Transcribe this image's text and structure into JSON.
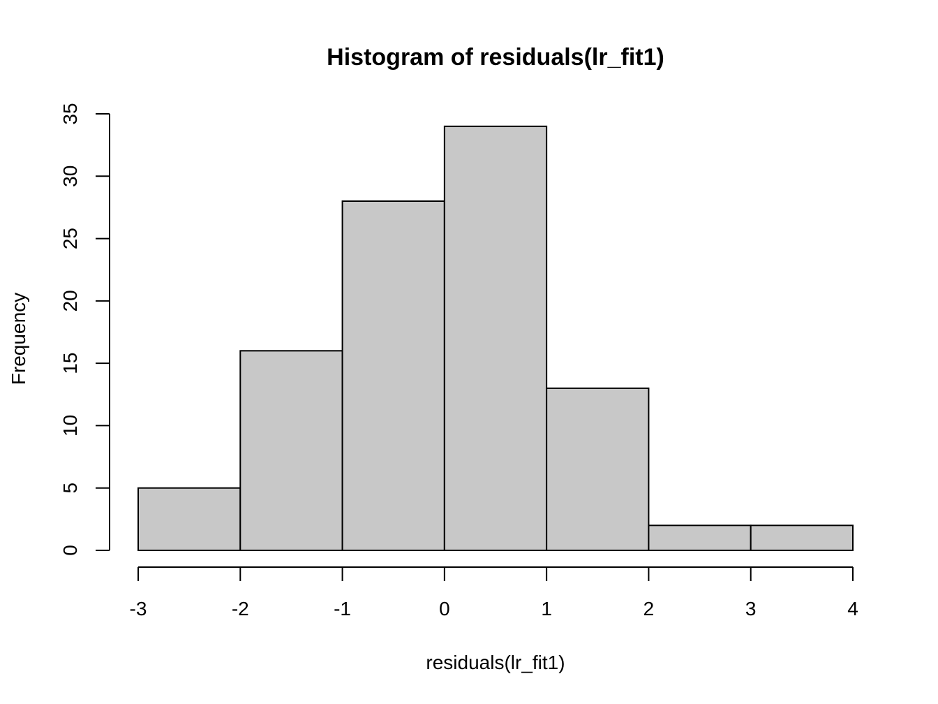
{
  "chart_data": {
    "type": "bar",
    "subtype": "histogram",
    "title": "Histogram of residuals(lr_fit1)",
    "xlabel": "residuals(lr_fit1)",
    "ylabel": "Frequency",
    "bins": [
      {
        "from": -3,
        "to": -2,
        "count": 5
      },
      {
        "from": -2,
        "to": -1,
        "count": 16
      },
      {
        "from": -1,
        "to": 0,
        "count": 28
      },
      {
        "from": 0,
        "to": 1,
        "count": 34
      },
      {
        "from": 1,
        "to": 2,
        "count": 13
      },
      {
        "from": 2,
        "to": 3,
        "count": 2
      },
      {
        "from": 3,
        "to": 4,
        "count": 2
      }
    ],
    "xlim": [
      -3,
      4
    ],
    "ylim": [
      0,
      35
    ],
    "x_ticks": [
      "-3",
      "-2",
      "-1",
      "0",
      "1",
      "2",
      "3",
      "4"
    ],
    "y_ticks": [
      "0",
      "5",
      "10",
      "15",
      "20",
      "25",
      "30",
      "35"
    ],
    "grid": false,
    "bar_color": "#c8c8c8",
    "edge_color": "#000000"
  }
}
